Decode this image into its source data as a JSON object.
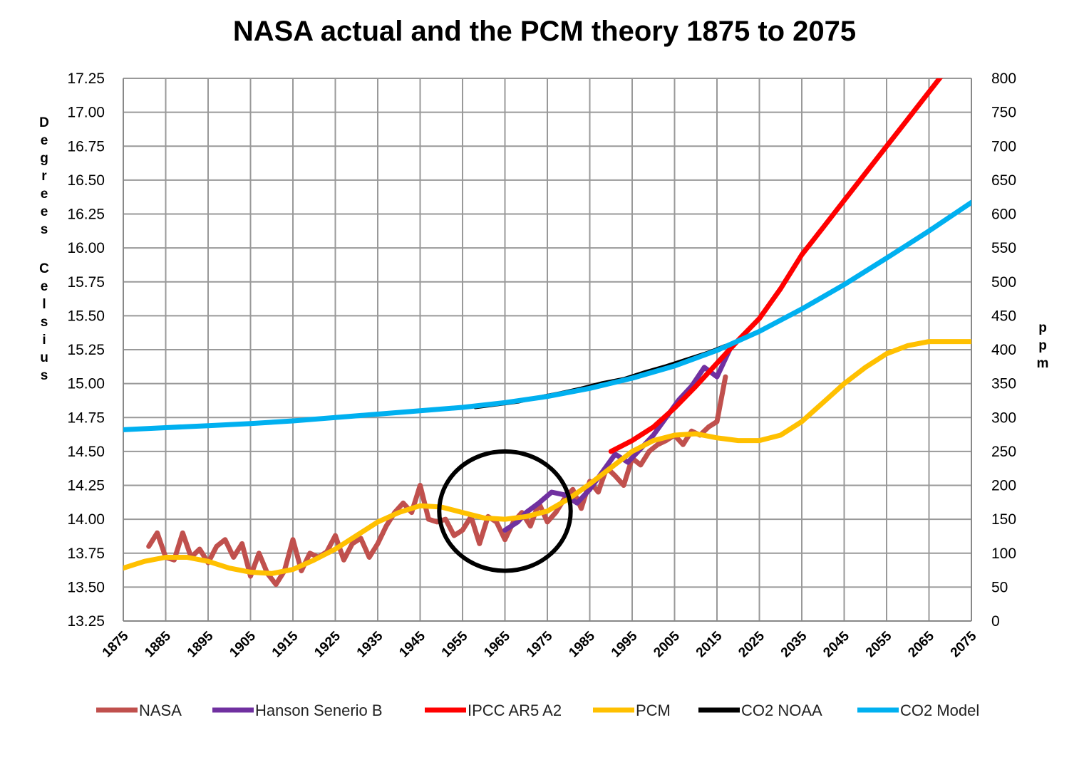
{
  "chart_data": {
    "type": "line",
    "title": "NASA actual and the PCM theory 1875 to 2075",
    "ylabel_left": "Degrees Celsius",
    "ylabel_right": "ppm",
    "xlim": [
      1875,
      2075
    ],
    "ylim_left": [
      13.25,
      17.25
    ],
    "ylim_right": [
      0,
      800
    ],
    "x_ticks": [
      1875,
      1885,
      1895,
      1905,
      1915,
      1925,
      1935,
      1945,
      1955,
      1965,
      1975,
      1985,
      1995,
      2005,
      2015,
      2025,
      2035,
      2045,
      2055,
      2065,
      2075
    ],
    "y_ticks_left": [
      "13.25",
      "13.50",
      "13.75",
      "14.00",
      "14.25",
      "14.50",
      "14.75",
      "15.00",
      "15.25",
      "15.50",
      "15.75",
      "16.00",
      "16.25",
      "16.50",
      "16.75",
      "17.00",
      "17.25"
    ],
    "y_ticks_right": [
      "0",
      "50",
      "100",
      "150",
      "200",
      "250",
      "300",
      "350",
      "400",
      "450",
      "500",
      "550",
      "600",
      "650",
      "700",
      "750",
      "800"
    ],
    "grid": true,
    "legend_position": "bottom",
    "series": [
      {
        "name": "NASA",
        "axis": "left",
        "color": "#c0504d",
        "x": [
          1881,
          1883,
          1885,
          1887,
          1889,
          1891,
          1893,
          1895,
          1897,
          1899,
          1901,
          1903,
          1905,
          1907,
          1909,
          1911,
          1913,
          1915,
          1917,
          1919,
          1921,
          1923,
          1925,
          1927,
          1929,
          1931,
          1933,
          1935,
          1937,
          1939,
          1941,
          1943,
          1945,
          1947,
          1949,
          1951,
          1953,
          1955,
          1957,
          1959,
          1961,
          1963,
          1965,
          1967,
          1969,
          1971,
          1973,
          1975,
          1977,
          1979,
          1981,
          1983,
          1985,
          1987,
          1989,
          1991,
          1993,
          1995,
          1997,
          1999,
          2001,
          2003,
          2005,
          2007,
          2009,
          2011,
          2013,
          2015,
          2017
        ],
        "y": [
          13.8,
          13.9,
          13.72,
          13.7,
          13.9,
          13.72,
          13.78,
          13.68,
          13.8,
          13.85,
          13.72,
          13.82,
          13.58,
          13.75,
          13.6,
          13.52,
          13.62,
          13.85,
          13.62,
          13.75,
          13.72,
          13.76,
          13.88,
          13.7,
          13.82,
          13.86,
          13.72,
          13.82,
          13.95,
          14.05,
          14.12,
          14.05,
          14.25,
          14.0,
          13.98,
          14.0,
          13.88,
          13.92,
          14.02,
          13.82,
          14.02,
          13.98,
          13.85,
          13.98,
          14.05,
          13.95,
          14.12,
          13.98,
          14.05,
          14.15,
          14.22,
          14.08,
          14.28,
          14.2,
          14.38,
          14.32,
          14.25,
          14.45,
          14.4,
          14.5,
          14.55,
          14.58,
          14.62,
          14.55,
          14.65,
          14.62,
          14.68,
          14.72,
          15.05
        ]
      },
      {
        "name": "Hanson Senerio B",
        "axis": "left",
        "color": "#7030a0",
        "x": [
          1965,
          1968,
          1970,
          1973,
          1976,
          1979,
          1982,
          1985,
          1988,
          1991,
          1994,
          1997,
          2000,
          2003,
          2006,
          2009,
          2012,
          2015,
          2018
        ],
        "y": [
          13.92,
          13.98,
          14.05,
          14.12,
          14.2,
          14.18,
          14.12,
          14.22,
          14.35,
          14.48,
          14.42,
          14.52,
          14.62,
          14.75,
          14.88,
          14.98,
          15.12,
          15.05,
          15.25
        ]
      },
      {
        "name": "IPCC AR5 A2",
        "axis": "left",
        "color": "#ff0000",
        "x": [
          1990,
          1995,
          2000,
          2005,
          2010,
          2015,
          2020,
          2025,
          2030,
          2035,
          2040,
          2045,
          2050,
          2055,
          2060,
          2065,
          2070,
          2075
        ],
        "y": [
          14.5,
          14.58,
          14.68,
          14.82,
          14.98,
          15.15,
          15.32,
          15.48,
          15.7,
          15.95,
          16.15,
          16.35,
          16.55,
          16.75,
          16.95,
          17.15,
          17.35,
          17.55
        ]
      },
      {
        "name": "PCM",
        "axis": "left",
        "color": "#ffc000",
        "x": [
          1875,
          1880,
          1885,
          1890,
          1895,
          1900,
          1905,
          1910,
          1915,
          1920,
          1925,
          1930,
          1935,
          1940,
          1945,
          1950,
          1955,
          1960,
          1965,
          1970,
          1975,
          1980,
          1985,
          1990,
          1995,
          2000,
          2005,
          2010,
          2015,
          2020,
          2025,
          2030,
          2035,
          2040,
          2045,
          2050,
          2055,
          2060,
          2065,
          2070,
          2075
        ],
        "y": [
          13.64,
          13.69,
          13.72,
          13.72,
          13.69,
          13.64,
          13.61,
          13.6,
          13.63,
          13.7,
          13.78,
          13.88,
          13.98,
          14.05,
          14.1,
          14.09,
          14.05,
          14.01,
          14.0,
          14.02,
          14.06,
          14.15,
          14.26,
          14.38,
          14.5,
          14.58,
          14.62,
          14.63,
          14.6,
          14.58,
          14.58,
          14.62,
          14.72,
          14.86,
          15.0,
          15.12,
          15.22,
          15.28,
          15.31,
          15.31,
          15.31
        ]
      },
      {
        "name": "CO2 NOAA",
        "axis": "right",
        "color": "#000000",
        "x": [
          1958,
          1963,
          1968,
          1973,
          1978,
          1983,
          1988,
          1993,
          1998,
          2003,
          2008,
          2013,
          2017
        ],
        "y": [
          315,
          319,
          323,
          330,
          336,
          343,
          351,
          357,
          367,
          376,
          386,
          396,
          406
        ]
      },
      {
        "name": "CO2 Model",
        "axis": "right",
        "color": "#00b0f0",
        "x": [
          1875,
          1885,
          1895,
          1905,
          1915,
          1925,
          1935,
          1945,
          1955,
          1965,
          1975,
          1985,
          1995,
          2005,
          2015,
          2025,
          2035,
          2045,
          2055,
          2065,
          2075
        ],
        "y": [
          282,
          285,
          288,
          291,
          295,
          300,
          305,
          310,
          315,
          322,
          331,
          343,
          358,
          376,
          399,
          427,
          460,
          496,
          535,
          575,
          617
        ]
      }
    ],
    "annotations": [
      {
        "type": "ellipse",
        "cx": 1965,
        "cy": 14.06,
        "rx": 15.5,
        "ry": 0.44,
        "color": "#000000"
      }
    ]
  }
}
